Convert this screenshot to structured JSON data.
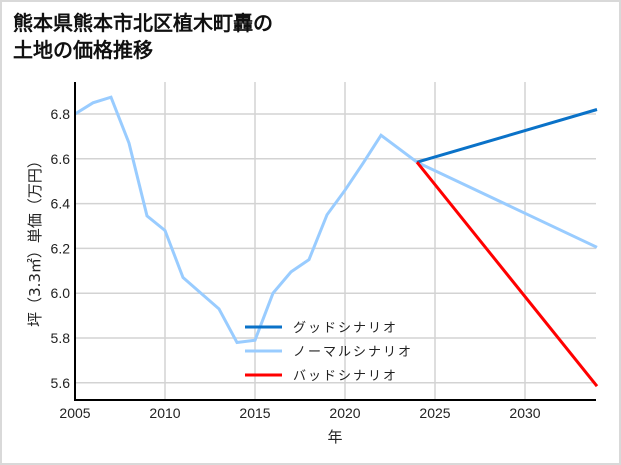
{
  "title": "熊本県熊本市北区植木町轟の\n土地の価格推移",
  "colors": {
    "good": "#0a72c8",
    "normal": "#99ccff",
    "bad": "#ff0000",
    "grid": "#d3d3d3",
    "axis": "#000000",
    "border": "#d9d9d9"
  },
  "chart_data": {
    "type": "line",
    "title": "熊本県熊本市北区植木町轟の土地の価格推移",
    "xlabel": "年",
    "ylabel": "坪（3.3㎡）単価（万円）",
    "xlim": [
      2005,
      2034
    ],
    "ylim": [
      5.52,
      6.95
    ],
    "xticks": [
      2005,
      2010,
      2015,
      2020,
      2025,
      2030
    ],
    "yticks": [
      5.6,
      5.8,
      6.0,
      6.2,
      6.4,
      6.6,
      6.8
    ],
    "grid": true,
    "legend_position": "lower center",
    "series": [
      {
        "name": "グッドシナリオ",
        "color": "#0a72c8",
        "x": [
          2024,
          2034
        ],
        "y": [
          6.585,
          6.82
        ]
      },
      {
        "name": "ノーマルシナリオ",
        "color": "#99ccff",
        "x": [
          2005,
          2006,
          2007,
          2008,
          2009,
          2010,
          2011,
          2012,
          2013,
          2014,
          2015,
          2016,
          2017,
          2018,
          2019,
          2020,
          2021,
          2022,
          2023,
          2024,
          2034
        ],
        "y": [
          6.8,
          6.85,
          6.875,
          6.67,
          6.345,
          6.28,
          6.07,
          6.0,
          5.93,
          5.78,
          5.79,
          6.0,
          6.095,
          6.15,
          6.35,
          6.46,
          6.58,
          6.705,
          6.645,
          6.585,
          6.205
        ]
      },
      {
        "name": "バッドシナリオ",
        "color": "#ff0000",
        "x": [
          2024,
          2034
        ],
        "y": [
          6.585,
          5.585
        ]
      }
    ]
  }
}
